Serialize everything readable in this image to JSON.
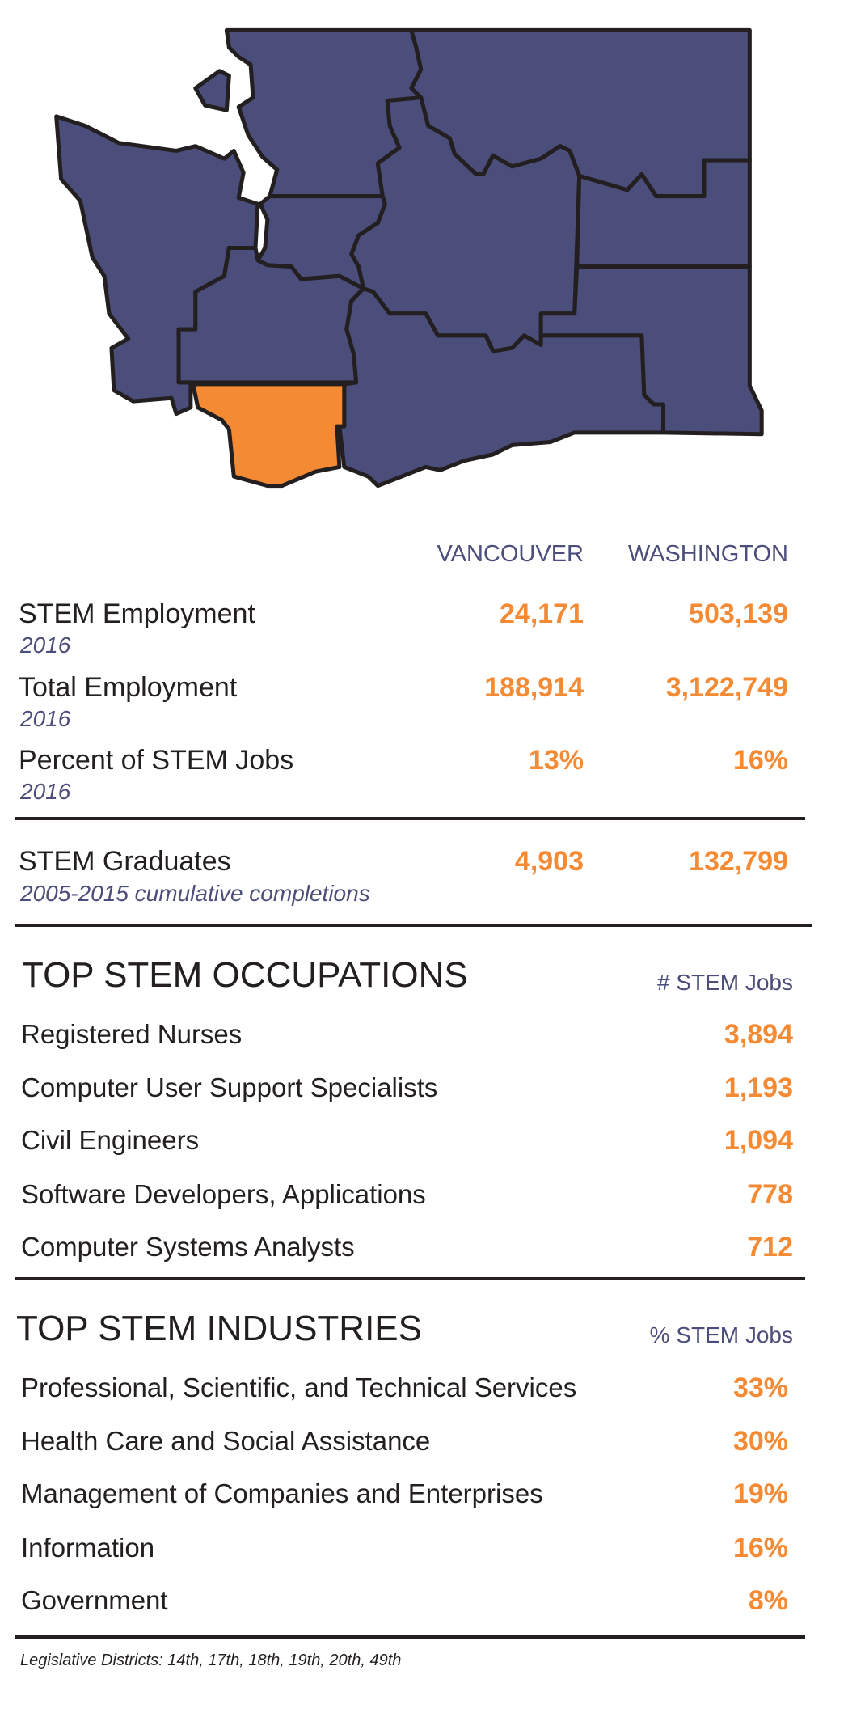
{
  "colors": {
    "region": "#4b4d7a",
    "highlight": "#f58a34",
    "outline": "#231f20"
  },
  "map": {
    "highlighted_region": "Vancouver"
  },
  "columns": {
    "local": "VANCOUVER",
    "state": "WASHINGTON"
  },
  "stats": [
    {
      "label": "STEM Employment",
      "sub": "2016",
      "local": "24,171",
      "state": "503,139"
    },
    {
      "label": "Total Employment",
      "sub": "2016",
      "local": "188,914",
      "state": "3,122,749"
    },
    {
      "label": "Percent of STEM Jobs",
      "sub": "2016",
      "local": "13%",
      "state": "16%"
    },
    {
      "label": "STEM Graduates",
      "sub": "2005-2015 cumulative completions",
      "local": "4,903",
      "state": "132,799"
    }
  ],
  "occupations": {
    "title": "TOP STEM OCCUPATIONS",
    "unit": "# STEM Jobs",
    "items": [
      {
        "label": "Registered Nurses",
        "value": "3,894"
      },
      {
        "label": "Computer User Support Specialists",
        "value": "1,193"
      },
      {
        "label": "Civil Engineers",
        "value": "1,094"
      },
      {
        "label": "Software Developers, Applications",
        "value": "778"
      },
      {
        "label": "Computer Systems Analysts",
        "value": "712"
      }
    ]
  },
  "industries": {
    "title": "TOP STEM INDUSTRIES",
    "unit": "% STEM Jobs",
    "items": [
      {
        "label": "Professional, Scientific, and Technical Services",
        "value": "33%"
      },
      {
        "label": "Health Care and Social Assistance",
        "value": "30%"
      },
      {
        "label": "Management of Companies and Enterprises",
        "value": "19%"
      },
      {
        "label": "Information",
        "value": "16%"
      },
      {
        "label": "Government",
        "value": "8%"
      }
    ]
  },
  "footnote": "Legislative Districts: 14th, 17th, 18th, 19th, 20th, 49th"
}
